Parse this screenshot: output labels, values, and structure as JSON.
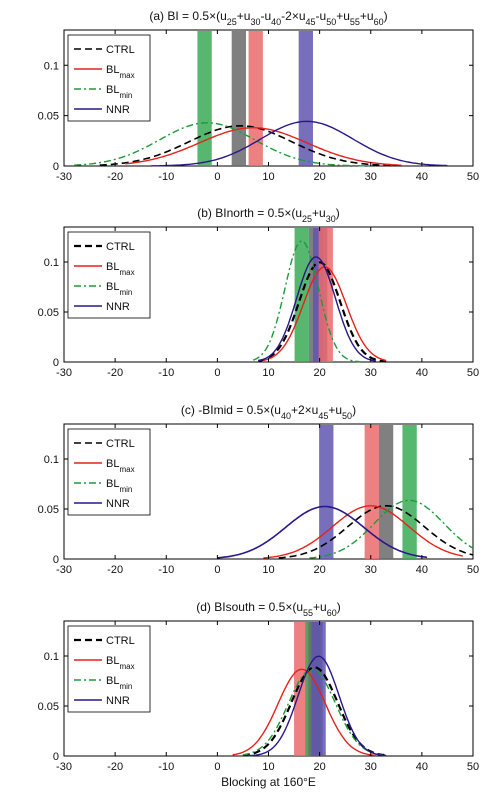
{
  "chart_data": [
    {
      "type": "line",
      "title": "(a) BI = 0.5×(u25+u30-u40-2×u45-u50+u55+u60)",
      "title_parts": [
        {
          "t": "(a) BI = 0.5×(u"
        },
        {
          "t": "25",
          "sub": true
        },
        {
          "t": "+u"
        },
        {
          "t": "30",
          "sub": true
        },
        {
          "t": "-u"
        },
        {
          "t": "40",
          "sub": true
        },
        {
          "t": "-2×u"
        },
        {
          "t": "45",
          "sub": true
        },
        {
          "t": "-u"
        },
        {
          "t": "50",
          "sub": true
        },
        {
          "t": "+u"
        },
        {
          "t": "55",
          "sub": true
        },
        {
          "t": "+u"
        },
        {
          "t": "60",
          "sub": true
        },
        {
          "t": ")"
        }
      ],
      "xlim": [
        -30,
        50
      ],
      "ylim": [
        0,
        0.135
      ],
      "xticks": [
        -30,
        -20,
        -10,
        0,
        10,
        20,
        30,
        40,
        50
      ],
      "yticks": [
        0,
        0.05,
        0.1
      ],
      "legend_position": "top-left",
      "series": [
        {
          "name": "CTRL",
          "mean": 4.5,
          "sd": 10.0,
          "range": [
            -23,
            36
          ],
          "color": "#000000",
          "dash": "dashed",
          "width": 1.6
        },
        {
          "name": "BLmax",
          "mean": 7.0,
          "sd": 10.5,
          "range": [
            -18,
            36
          ],
          "color": "#e8211a",
          "dash": "solid",
          "width": 1.4
        },
        {
          "name": "BLmin",
          "mean": -2.0,
          "sd": 9.3,
          "range": [
            -28,
            30
          ],
          "color": "#1d9a3a",
          "dash": "dashdot",
          "width": 1.4
        },
        {
          "name": "NNR",
          "mean": 17.5,
          "sd": 9.0,
          "range": [
            -13,
            45
          ],
          "color": "#2a178c",
          "dash": "solid",
          "width": 1.4
        }
      ],
      "bands": [
        {
          "x": -2.5,
          "color": "#3aaa55"
        },
        {
          "x": 4.2,
          "color": "#6a6a6a"
        },
        {
          "x": 7.5,
          "color": "#ea6b6b"
        },
        {
          "x": 17.3,
          "color": "#5f55b0"
        }
      ]
    },
    {
      "type": "line",
      "title": "(b) BInorth = 0.5×(u25+u30)",
      "title_parts": [
        {
          "t": "(b) BInorth = 0.5×(u"
        },
        {
          "t": "25",
          "sub": true
        },
        {
          "t": "+u"
        },
        {
          "t": "30",
          "sub": true
        },
        {
          "t": ")"
        }
      ],
      "xlim": [
        -30,
        50
      ],
      "ylim": [
        0,
        0.135
      ],
      "xticks": [
        -30,
        -20,
        -10,
        0,
        10,
        20,
        30,
        40,
        50
      ],
      "yticks": [
        0,
        0.05,
        0.1
      ],
      "legend_position": "top-left",
      "series": [
        {
          "name": "CTRL",
          "mean": 20.0,
          "sd": 4.0,
          "range": [
            8,
            33
          ],
          "color": "#000000",
          "dash": "dashed",
          "width": 2.2
        },
        {
          "name": "BLmax",
          "mean": 21.0,
          "sd": 4.2,
          "range": [
            9,
            33
          ],
          "color": "#e8211a",
          "dash": "solid",
          "width": 1.4
        },
        {
          "name": "BLmin",
          "mean": 16.5,
          "sd": 3.3,
          "range": [
            7,
            28
          ],
          "color": "#1d9a3a",
          "dash": "dashdot",
          "width": 1.4
        },
        {
          "name": "NNR",
          "mean": 19.3,
          "sd": 3.8,
          "range": [
            8,
            31
          ],
          "color": "#2a178c",
          "dash": "solid",
          "width": 1.4
        }
      ],
      "bands": [
        {
          "x": 16.5,
          "color": "#3aaa55"
        },
        {
          "x": 19.3,
          "color": "#6a6a6a"
        },
        {
          "x": 20.1,
          "color": "#5f55b0"
        },
        {
          "x": 21.2,
          "color": "#ea6b6b"
        }
      ]
    },
    {
      "type": "line",
      "title": "(c) -BImid = 0.5×(u40+2×u45+u50)",
      "title_parts": [
        {
          "t": "(c) -BImid = 0.5×(u"
        },
        {
          "t": "40",
          "sub": true
        },
        {
          "t": "+2×u"
        },
        {
          "t": "45",
          "sub": true
        },
        {
          "t": "+u"
        },
        {
          "t": "50",
          "sub": true
        },
        {
          "t": ")"
        }
      ],
      "xlim": [
        -30,
        50
      ],
      "ylim": [
        0,
        0.135
      ],
      "xticks": [
        -30,
        -20,
        -10,
        0,
        10,
        20,
        30,
        40,
        50
      ],
      "yticks": [
        0,
        0.05,
        0.1
      ],
      "legend_position": "top-left",
      "series": [
        {
          "name": "CTRL",
          "mean": 33.0,
          "sd": 7.5,
          "range": [
            12,
            50
          ],
          "color": "#000000",
          "dash": "dashed",
          "width": 1.6
        },
        {
          "name": "BLmax",
          "mean": 30.0,
          "sd": 7.5,
          "range": [
            9,
            48
          ],
          "color": "#e8211a",
          "dash": "solid",
          "width": 1.4
        },
        {
          "name": "BLmin",
          "mean": 37.5,
          "sd": 6.8,
          "range": [
            18,
            50
          ],
          "color": "#1d9a3a",
          "dash": "dashdot",
          "width": 1.4
        },
        {
          "name": "NNR",
          "mean": 21.0,
          "sd": 7.6,
          "range": [
            0,
            41
          ],
          "color": "#2a178c",
          "dash": "solid",
          "width": 1.6
        }
      ],
      "bands": [
        {
          "x": 21.3,
          "color": "#5f55b0"
        },
        {
          "x": 30.2,
          "color": "#ea6b6b"
        },
        {
          "x": 33.0,
          "color": "#6a6a6a"
        },
        {
          "x": 37.6,
          "color": "#3aaa55"
        }
      ]
    },
    {
      "type": "line",
      "title": "(d) BIsouth = 0.5×(u55+u60)",
      "title_parts": [
        {
          "t": "(d) BIsouth = 0.5×(u"
        },
        {
          "t": "55",
          "sub": true
        },
        {
          "t": "+u"
        },
        {
          "t": "60",
          "sub": true
        },
        {
          "t": ")"
        }
      ],
      "xlim": [
        -30,
        50
      ],
      "ylim": [
        0,
        0.135
      ],
      "xticks": [
        -30,
        -20,
        -10,
        0,
        10,
        20,
        30,
        40,
        50
      ],
      "yticks": [
        0,
        0.05,
        0.1
      ],
      "xlabel": "Blocking at 160°E",
      "legend_position": "top-left",
      "series": [
        {
          "name": "CTRL",
          "mean": 19.0,
          "sd": 4.5,
          "range": [
            5,
            33
          ],
          "color": "#000000",
          "dash": "dashed",
          "width": 2.2
        },
        {
          "name": "BLmax",
          "mean": 16.5,
          "sd": 4.6,
          "range": [
            3,
            31
          ],
          "color": "#e8211a",
          "dash": "solid",
          "width": 1.4
        },
        {
          "name": "BLmin",
          "mean": 18.5,
          "sd": 4.6,
          "range": [
            5,
            33
          ],
          "color": "#1d9a3a",
          "dash": "dashdot",
          "width": 1.4
        },
        {
          "name": "NNR",
          "mean": 19.8,
          "sd": 4.0,
          "range": [
            6,
            33
          ],
          "color": "#2a178c",
          "dash": "solid",
          "width": 1.4
        }
      ],
      "bands": [
        {
          "x": 16.4,
          "color": "#ea6b6b"
        },
        {
          "x": 18.6,
          "color": "#3aaa55"
        },
        {
          "x": 19.2,
          "color": "#6a6a6a"
        },
        {
          "x": 19.8,
          "color": "#5f55b0"
        }
      ]
    }
  ],
  "legend": {
    "entries": [
      {
        "base": "CTRL",
        "sub": ""
      },
      {
        "base": "BL",
        "sub": "max"
      },
      {
        "base": "BL",
        "sub": "min"
      },
      {
        "base": "NNR",
        "sub": ""
      }
    ]
  }
}
